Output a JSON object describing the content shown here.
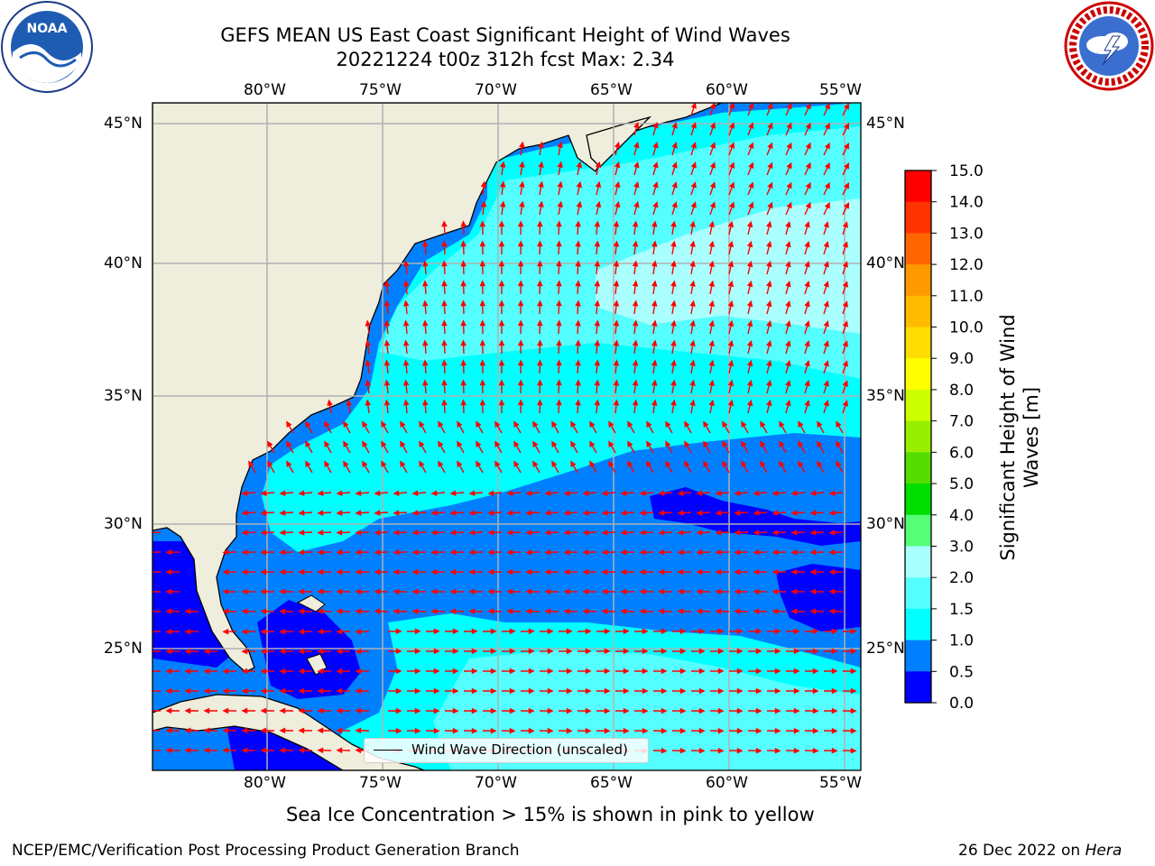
{
  "header": {
    "title_line1": "GEFS MEAN US East Coast Significant Height of Wind Waves",
    "title_line2": "20221224 t00z 312h fcst   Max: 2.34"
  },
  "map": {
    "lon_labels": [
      "80°W",
      "75°W",
      "70°W",
      "65°W",
      "60°W",
      "55°W"
    ],
    "lat_labels": [
      "45°N",
      "40°N",
      "35°N",
      "30°N",
      "25°N"
    ],
    "legend_label": "Wind Wave Direction (unscaled)",
    "land_color": "#efeddc",
    "grid_color": "#b0b0b0",
    "arrow_color": "#ff0000"
  },
  "colorbar": {
    "label_line1": "Significant Height of Wind",
    "label_line2": "Waves [m]",
    "ticks": [
      "15.0",
      "14.0",
      "13.0",
      "12.0",
      "11.0",
      "10.0",
      "9.0",
      "8.0",
      "7.0",
      "6.0",
      "5.0",
      "4.0",
      "3.0",
      "2.0",
      "1.5",
      "1.0",
      "0.5",
      "0.0"
    ],
    "colors_top_to_bottom": [
      "#ff0000",
      "#ff3300",
      "#ff6600",
      "#ff9900",
      "#ffbb00",
      "#ffdd00",
      "#ffff00",
      "#ccff00",
      "#99ee00",
      "#55dd00",
      "#00dd00",
      "#55ff77",
      "#aaffff",
      "#55ffff",
      "#00ffff",
      "#0080ff",
      "#0000ff"
    ]
  },
  "notes": {
    "sea_ice": "Sea Ice Concentration > 15% is shown in pink to yellow"
  },
  "footer": {
    "left": "NCEP/EMC/Verification Post Processing Product Generation Branch",
    "right_prefix": "26 Dec 2022 on ",
    "right_host": "Hera"
  },
  "logos": {
    "left_icon": "noaa-logo-icon",
    "right_icon": "nws-logo-icon",
    "left_text": "NOAA"
  }
}
